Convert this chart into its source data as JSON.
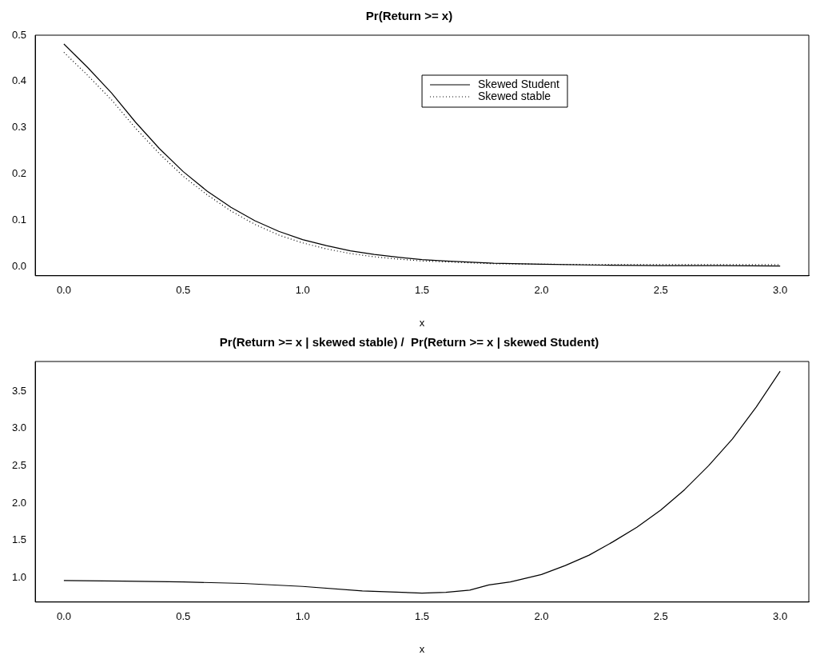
{
  "chart_data": [
    {
      "type": "line",
      "title": "Pr(Return >= x)",
      "xlabel": "x",
      "legend": "top right",
      "grid": false,
      "marker": "none",
      "xlim": [
        -0.12,
        3.12
      ],
      "ylim": [
        -0.02,
        0.5
      ],
      "xticks": [
        {
          "value": 0,
          "label": "0.0"
        },
        {
          "value": 0.5,
          "label": "0.5"
        },
        {
          "value": 1,
          "label": "1.0"
        },
        {
          "value": 1.5,
          "label": "1.5"
        },
        {
          "value": 2,
          "label": "2.0"
        },
        {
          "value": 2.5,
          "label": "2.5"
        },
        {
          "value": 3,
          "label": "3.0"
        }
      ],
      "yticks": [
        {
          "value": 0,
          "label": "0.0"
        },
        {
          "value": 0.1,
          "label": "0.1"
        },
        {
          "value": 0.2,
          "label": "0.2"
        },
        {
          "value": 0.3,
          "label": "0.3"
        },
        {
          "value": 0.4,
          "label": "0.4"
        },
        {
          "value": 0.5,
          "label": "0.5"
        }
      ],
      "x": [
        0,
        0.1,
        0.2,
        0.3,
        0.4,
        0.5,
        0.6,
        0.7,
        0.8,
        0.9,
        1.0,
        1.1,
        1.2,
        1.3,
        1.4,
        1.5,
        1.6,
        1.8,
        2.0,
        2.25,
        2.5,
        2.75,
        3.0
      ],
      "series": [
        {
          "name": "Skewed Student",
          "color": "#000000",
          "line_style": "solid",
          "values": [
            0.481,
            0.43,
            0.375,
            0.312,
            0.255,
            0.205,
            0.163,
            0.128,
            0.099,
            0.076,
            0.058,
            0.045,
            0.034,
            0.026,
            0.02,
            0.015,
            0.012,
            0.007,
            0.005,
            0.003,
            0.002,
            0.002,
            0.001
          ]
        },
        {
          "name": "Skewed stable",
          "color": "#000000",
          "line_style": "dotted",
          "values": [
            0.463,
            0.413,
            0.36,
            0.299,
            0.244,
            0.195,
            0.155,
            0.12,
            0.091,
            0.068,
            0.051,
            0.038,
            0.028,
            0.021,
            0.016,
            0.012,
            0.01,
            0.006,
            0.005,
            0.004,
            0.004,
            0.004,
            0.004
          ]
        }
      ]
    },
    {
      "type": "line",
      "title": "Pr(Return >= x | skewed stable) /  Pr(Return >= x | skewed Student)",
      "xlabel": "x",
      "legend": false,
      "grid": false,
      "marker": "none",
      "xlim": [
        -0.12,
        3.12
      ],
      "ylim": [
        0.67,
        3.9
      ],
      "xticks": [
        {
          "value": 0,
          "label": "0.0"
        },
        {
          "value": 0.5,
          "label": "0.5"
        },
        {
          "value": 1,
          "label": "1.0"
        },
        {
          "value": 1.5,
          "label": "1.5"
        },
        {
          "value": 2,
          "label": "2.0"
        },
        {
          "value": 2.5,
          "label": "2.5"
        },
        {
          "value": 3,
          "label": "3.0"
        }
      ],
      "yticks": [
        {
          "value": 1,
          "label": "1.0"
        },
        {
          "value": 1.5,
          "label": "1.5"
        },
        {
          "value": 2,
          "label": "2.0"
        },
        {
          "value": 2.5,
          "label": "2.5"
        },
        {
          "value": 3,
          "label": "3.0"
        },
        {
          "value": 3.5,
          "label": "3.5"
        }
      ],
      "x": [
        0,
        0.25,
        0.5,
        0.75,
        1.0,
        1.25,
        1.5,
        1.6,
        1.7,
        1.78,
        1.87,
        2.0,
        2.1,
        2.2,
        2.3,
        2.4,
        2.5,
        2.6,
        2.7,
        2.8,
        2.9,
        3.0
      ],
      "series": [
        {
          "color": "#000000",
          "line_style": "solid",
          "values": [
            0.96,
            0.95,
            0.94,
            0.92,
            0.88,
            0.82,
            0.79,
            0.8,
            0.83,
            0.9,
            0.94,
            1.04,
            1.16,
            1.3,
            1.48,
            1.675,
            1.905,
            2.18,
            2.5,
            2.86,
            3.29,
            3.77
          ]
        }
      ]
    }
  ]
}
